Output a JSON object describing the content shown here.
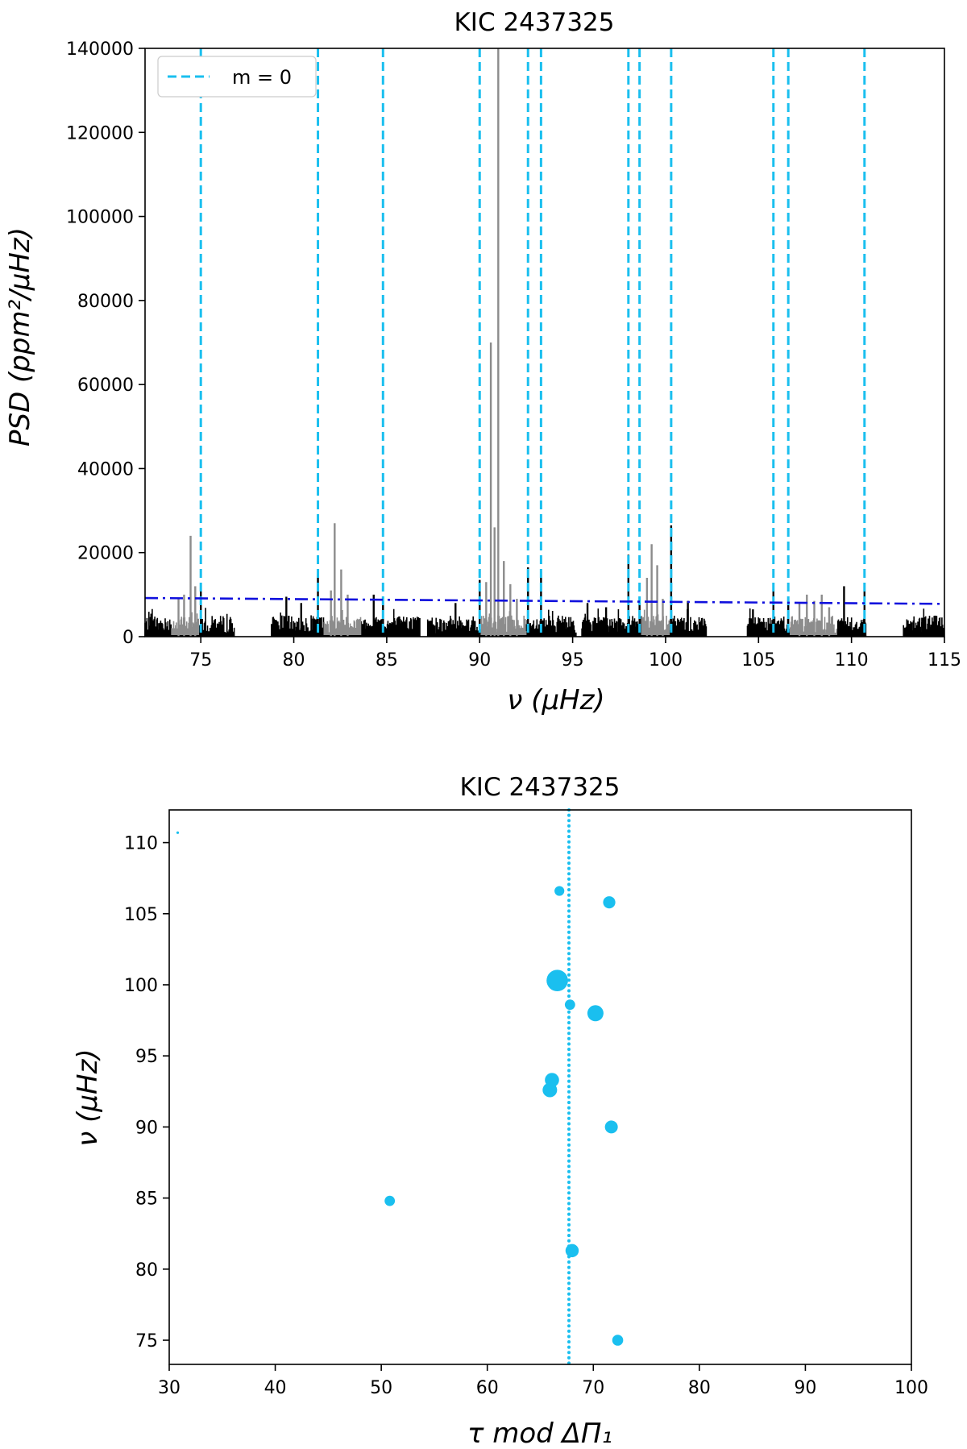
{
  "chart_data": [
    {
      "type": "line",
      "title": "KIC 2437325",
      "xlabel": "ν (μHz)",
      "ylabel": "PSD (ppm²/μHz)",
      "xlim": [
        72,
        115
      ],
      "ylim": [
        0,
        140000
      ],
      "xticks": [
        75,
        80,
        85,
        90,
        95,
        100,
        105,
        110,
        115
      ],
      "yticks": [
        0,
        20000,
        40000,
        60000,
        80000,
        100000,
        120000,
        140000
      ],
      "grid": false,
      "legend": {
        "position": "top-left",
        "entries": [
          "m = 0"
        ]
      },
      "colors": {
        "m0": "#1abfef",
        "threshold": "#1010dd",
        "spectrum": "#000000",
        "highlight": "#8c8c8c"
      },
      "m0_lines": [
        75.0,
        81.3,
        84.8,
        90.0,
        92.6,
        93.3,
        98.0,
        98.6,
        100.3,
        105.8,
        106.6,
        110.7
      ],
      "threshold": {
        "x": [
          72,
          115
        ],
        "y": [
          9200,
          7800
        ]
      },
      "psd_segments": [
        [
          72,
          76.8
        ],
        [
          78.8,
          86.8
        ],
        [
          87.2,
          95.2
        ],
        [
          95.5,
          102.2
        ],
        [
          104.4,
          110.8
        ],
        [
          112.8,
          115
        ]
      ],
      "highlight_regions": [
        [
          73.4,
          74.9
        ],
        [
          81.6,
          83.6
        ],
        [
          90.0,
          92.5
        ],
        [
          98.7,
          100.2
        ],
        [
          106.7,
          109.2
        ]
      ],
      "peaks": [
        {
          "x": 73.8,
          "y": 9000,
          "hl": true
        },
        {
          "x": 74.1,
          "y": 10000,
          "hl": true
        },
        {
          "x": 74.45,
          "y": 24000,
          "hl": true
        },
        {
          "x": 74.7,
          "y": 12000,
          "hl": true
        },
        {
          "x": 75.0,
          "y": 11000,
          "hl": false
        },
        {
          "x": 79.6,
          "y": 9500,
          "hl": false
        },
        {
          "x": 80.4,
          "y": 8000,
          "hl": false
        },
        {
          "x": 81.3,
          "y": 15000,
          "hl": false
        },
        {
          "x": 82.0,
          "y": 11000,
          "hl": true
        },
        {
          "x": 82.2,
          "y": 27000,
          "hl": true
        },
        {
          "x": 82.55,
          "y": 16000,
          "hl": true
        },
        {
          "x": 82.9,
          "y": 10000,
          "hl": true
        },
        {
          "x": 84.3,
          "y": 10000,
          "hl": false
        },
        {
          "x": 84.8,
          "y": 9000,
          "hl": false
        },
        {
          "x": 88.7,
          "y": 8000,
          "hl": false
        },
        {
          "x": 90.0,
          "y": 13500,
          "hl": false
        },
        {
          "x": 90.35,
          "y": 13000,
          "hl": true
        },
        {
          "x": 90.6,
          "y": 70000,
          "hl": true
        },
        {
          "x": 90.8,
          "y": 26000,
          "hl": true
        },
        {
          "x": 91.0,
          "y": 140000,
          "hl": true
        },
        {
          "x": 91.3,
          "y": 18000,
          "hl": true
        },
        {
          "x": 91.65,
          "y": 12500,
          "hl": true
        },
        {
          "x": 92.0,
          "y": 9000,
          "hl": true
        },
        {
          "x": 92.6,
          "y": 16500,
          "hl": false
        },
        {
          "x": 93.3,
          "y": 15500,
          "hl": false
        },
        {
          "x": 95.8,
          "y": 8000,
          "hl": false
        },
        {
          "x": 96.8,
          "y": 7000,
          "hl": false
        },
        {
          "x": 98.0,
          "y": 19500,
          "hl": false
        },
        {
          "x": 98.6,
          "y": 8500,
          "hl": false
        },
        {
          "x": 99.0,
          "y": 14000,
          "hl": true
        },
        {
          "x": 99.25,
          "y": 22000,
          "hl": true
        },
        {
          "x": 99.55,
          "y": 17000,
          "hl": true
        },
        {
          "x": 99.85,
          "y": 9000,
          "hl": true
        },
        {
          "x": 100.3,
          "y": 26500,
          "hl": false
        },
        {
          "x": 101.2,
          "y": 8500,
          "hl": false
        },
        {
          "x": 104.7,
          "y": 6500,
          "hl": false
        },
        {
          "x": 105.8,
          "y": 12000,
          "hl": false
        },
        {
          "x": 106.6,
          "y": 8000,
          "hl": false
        },
        {
          "x": 107.2,
          "y": 8000,
          "hl": true
        },
        {
          "x": 107.6,
          "y": 10000,
          "hl": true
        },
        {
          "x": 108.0,
          "y": 8500,
          "hl": true
        },
        {
          "x": 108.4,
          "y": 10000,
          "hl": true
        },
        {
          "x": 108.8,
          "y": 7000,
          "hl": true
        },
        {
          "x": 109.6,
          "y": 12000,
          "hl": false
        },
        {
          "x": 110.7,
          "y": 11000,
          "hl": false
        },
        {
          "x": 113.8,
          "y": 4500,
          "hl": false
        },
        {
          "x": 114.5,
          "y": 5000,
          "hl": false
        }
      ]
    },
    {
      "type": "scatter",
      "title": "KIC 2437325",
      "xlabel": "τ mod ΔΠ₁",
      "ylabel": "ν (μHz)",
      "xlim": [
        30,
        100
      ],
      "ylim": [
        73.3,
        112.3
      ],
      "xticks": [
        30,
        40,
        50,
        60,
        70,
        80,
        90,
        100
      ],
      "yticks": [
        75,
        80,
        85,
        90,
        95,
        100,
        105,
        110
      ],
      "grid": false,
      "color": "#1abfef",
      "reference_x": 67.7,
      "points": [
        {
          "x": 30.8,
          "y": 110.7,
          "size": 0.8
        },
        {
          "x": 66.8,
          "y": 106.6,
          "size": 3.0
        },
        {
          "x": 71.5,
          "y": 105.8,
          "size": 3.7
        },
        {
          "x": 66.6,
          "y": 100.3,
          "size": 6.5
        },
        {
          "x": 67.8,
          "y": 98.6,
          "size": 3.1
        },
        {
          "x": 70.2,
          "y": 98.0,
          "size": 4.9
        },
        {
          "x": 66.1,
          "y": 93.3,
          "size": 4.3
        },
        {
          "x": 65.9,
          "y": 92.6,
          "size": 4.4
        },
        {
          "x": 71.7,
          "y": 90.0,
          "size": 3.9
        },
        {
          "x": 50.8,
          "y": 84.8,
          "size": 3.1
        },
        {
          "x": 68.0,
          "y": 81.3,
          "size": 4.0
        },
        {
          "x": 72.3,
          "y": 75.0,
          "size": 3.3
        }
      ]
    }
  ]
}
